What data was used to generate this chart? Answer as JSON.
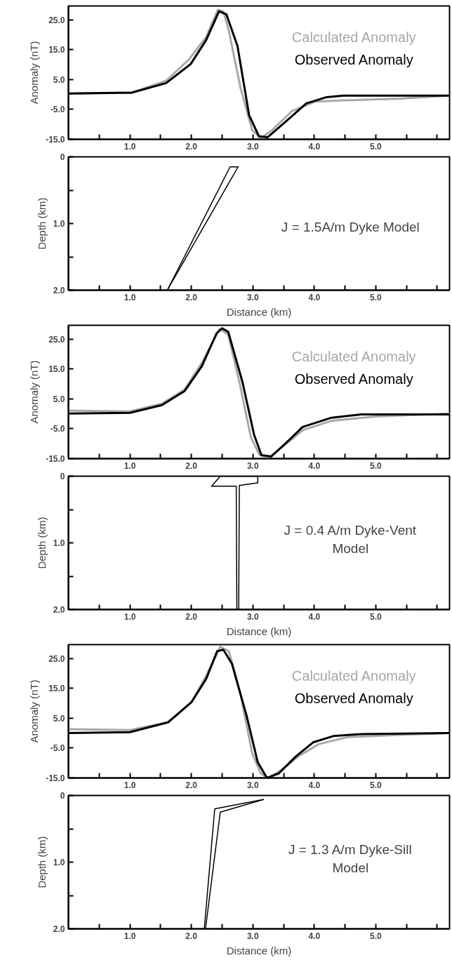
{
  "chart_data": [
    {
      "type": "line",
      "ylabel": "Anomaly (nT)",
      "legend": "top right",
      "xlim": [
        0,
        6.2
      ],
      "ylim": [
        -15,
        29.6
      ],
      "xticks": [
        {
          "value": 0.5,
          "label": null
        },
        {
          "value": 1.0,
          "label": "1.0"
        },
        {
          "value": 1.5,
          "label": null
        },
        {
          "value": 2.0,
          "label": "2.0"
        },
        {
          "value": 2.5,
          "label": null
        },
        {
          "value": 3.0,
          "label": "3.0"
        },
        {
          "value": 3.5,
          "label": null
        },
        {
          "value": 4.0,
          "label": "4.0"
        },
        {
          "value": 4.5,
          "label": null
        },
        {
          "value": 5.0,
          "label": "5.0"
        },
        {
          "value": 5.5,
          "label": null
        },
        {
          "value": 6.0,
          "label": null
        }
      ],
      "yticks": [
        {
          "value": 25,
          "label": "25.0"
        },
        {
          "value": 15,
          "label": "15.0"
        },
        {
          "value": 5,
          "label": "5.0"
        },
        {
          "value": -5,
          "label": "-5.0"
        },
        {
          "value": -15,
          "label": "-15.0"
        }
      ],
      "series": [
        {
          "name": "Calculated Anomaly",
          "color": "#a8a8a8",
          "x": [
            0.02,
            1.03,
            1.59,
            1.96,
            2.24,
            2.43,
            2.52,
            2.61,
            2.8,
            2.99,
            3.13,
            3.31,
            3.64,
            4.01,
            4.47,
            5.4,
            6.19
          ],
          "values": [
            0.3,
            0.6,
            4.6,
            11.7,
            19.2,
            28.3,
            27.8,
            21.3,
            2.1,
            -12,
            -14.6,
            -12,
            -5.5,
            -2.4,
            -2,
            -1.4,
            -0.4
          ]
        },
        {
          "name": "Observed Anomaly",
          "color": "#000000",
          "x": [
            0.02,
            1.03,
            1.59,
            1.99,
            2.24,
            2.45,
            2.57,
            2.75,
            2.94,
            3.1,
            3.24,
            3.54,
            3.87,
            4.2,
            4.47,
            6.19
          ],
          "values": [
            0.3,
            0.6,
            3.8,
            10.2,
            18.2,
            27.8,
            26.8,
            16.2,
            -7,
            -14,
            -14.3,
            -9,
            -3,
            -0.9,
            -0.4,
            -0.4
          ]
        }
      ]
    },
    {
      "type": "line",
      "ylabel": "Depth (km)",
      "xlabel": "Distance (km)",
      "xlim": [
        0,
        6.2
      ],
      "ylim": [
        2.0,
        0
      ],
      "xticks": [
        {
          "value": 0.5,
          "label": null
        },
        {
          "value": 1.0,
          "label": "1.0"
        },
        {
          "value": 1.5,
          "label": null
        },
        {
          "value": 2.0,
          "label": "2.0"
        },
        {
          "value": 2.5,
          "label": null
        },
        {
          "value": 3.0,
          "label": "3.0"
        },
        {
          "value": 3.5,
          "label": null
        },
        {
          "value": 4.0,
          "label": "4.0"
        },
        {
          "value": 4.5,
          "label": null
        },
        {
          "value": 5.0,
          "label": "5.0"
        },
        {
          "value": 5.5,
          "label": null
        },
        {
          "value": 6.0,
          "label": null
        }
      ],
      "yticks": [
        {
          "value": 0,
          "label": "0"
        },
        {
          "value": 0.5,
          "label": null
        },
        {
          "value": 1.0,
          "label": "1.0"
        },
        {
          "value": 1.5,
          "label": null
        },
        {
          "value": 2.0,
          "label": "2.0"
        }
      ],
      "annotations": [
        "J = 1.5A/m Dyke Model"
      ],
      "series": [
        {
          "color": "#000000",
          "x": [
            1.62,
            2.63,
            2.76
          ],
          "values": [
            1.98,
            0.15,
            0.15
          ]
        },
        {
          "color": "#000000",
          "x": [
            1.62,
            2.76
          ],
          "values": [
            1.98,
            0.15
          ]
        }
      ]
    },
    {
      "type": "line",
      "ylabel": "Anomaly (nT)",
      "legend": "top right",
      "xlim": [
        0,
        6.2
      ],
      "ylim": [
        -15,
        29.6
      ],
      "xticks": [
        {
          "value": 0.5,
          "label": null
        },
        {
          "value": 1.0,
          "label": "1.0"
        },
        {
          "value": 1.5,
          "label": null
        },
        {
          "value": 2.0,
          "label": "2.0"
        },
        {
          "value": 2.5,
          "label": null
        },
        {
          "value": 3.0,
          "label": "3.0"
        },
        {
          "value": 3.5,
          "label": null
        },
        {
          "value": 4.0,
          "label": "4.0"
        },
        {
          "value": 4.5,
          "label": null
        },
        {
          "value": 5.0,
          "label": "5.0"
        },
        {
          "value": 5.5,
          "label": null
        },
        {
          "value": 6.0,
          "label": null
        }
      ],
      "yticks": [
        {
          "value": 25,
          "label": "25.0"
        },
        {
          "value": 15,
          "label": "15.0"
        },
        {
          "value": 5,
          "label": "5.0"
        },
        {
          "value": -5,
          "label": "-5.0"
        },
        {
          "value": -15,
          "label": "-15.0"
        }
      ],
      "series": [
        {
          "name": "Calculated Anomaly",
          "color": "#a8a8a8",
          "x": [
            0,
            1,
            1.52,
            1.89,
            2.17,
            2.46,
            2.6,
            2.78,
            2.97,
            3.11,
            3.25,
            3.54,
            3.82,
            4.29,
            5.0,
            6.2
          ],
          "values": [
            1.1,
            0.8,
            3.4,
            8.1,
            17,
            28.4,
            26.4,
            10.7,
            -8,
            -13.8,
            -14.8,
            -10.1,
            -5.4,
            -2.3,
            -0.9,
            0.1
          ]
        },
        {
          "name": "Observed Anomaly",
          "color": "#000000",
          "x": [
            0,
            1,
            1.52,
            1.89,
            2.17,
            2.41,
            2.5,
            2.6,
            2.83,
            3.02,
            3.14,
            3.3,
            3.58,
            3.81,
            4.28,
            4.76,
            6.2
          ],
          "values": [
            0.1,
            0.3,
            2.9,
            7.6,
            15.9,
            26.9,
            28.6,
            27.4,
            10.7,
            -7,
            -13.8,
            -14.3,
            -9,
            -4.4,
            -1.3,
            -0.2,
            -0.2
          ]
        }
      ]
    },
    {
      "type": "line",
      "ylabel": "Depth (km)",
      "xlabel": "Distance (km)",
      "xlim": [
        0,
        6.2
      ],
      "ylim": [
        2.0,
        0
      ],
      "xticks": [
        {
          "value": 0.5,
          "label": null
        },
        {
          "value": 1.0,
          "label": "1.0"
        },
        {
          "value": 1.5,
          "label": null
        },
        {
          "value": 2.0,
          "label": "2.0"
        },
        {
          "value": 2.5,
          "label": null
        },
        {
          "value": 3.0,
          "label": "3.0"
        },
        {
          "value": 3.5,
          "label": null
        },
        {
          "value": 4.0,
          "label": "4.0"
        },
        {
          "value": 4.5,
          "label": null
        },
        {
          "value": 5.0,
          "label": "5.0"
        },
        {
          "value": 5.5,
          "label": null
        },
        {
          "value": 6.0,
          "label": null
        }
      ],
      "yticks": [
        {
          "value": 0,
          "label": "0"
        },
        {
          "value": 0.5,
          "label": null
        },
        {
          "value": 1.0,
          "label": "1.0"
        },
        {
          "value": 1.5,
          "label": null
        },
        {
          "value": 2.0,
          "label": "2.0"
        }
      ],
      "annotations": [
        "J = 0.4 A/m Dyke-Vent\nModel"
      ],
      "series": [
        {
          "color": "#000000",
          "x": [
            2.33,
            2.47,
            3.08,
            3.08
          ],
          "values": [
            0.15,
            0.0,
            0.0,
            0.1
          ]
        },
        {
          "color": "#000000",
          "x": [
            2.33,
            2.73,
            2.74,
            2.77,
            2.78,
            3.08
          ],
          "values": [
            0.15,
            0.15,
            2.0,
            2.0,
            0.14,
            0.1
          ]
        }
      ]
    },
    {
      "type": "line",
      "ylabel": "Anomaly (nT)",
      "legend": "top right",
      "xlim": [
        0,
        6.2
      ],
      "ylim": [
        -15,
        29.6
      ],
      "xticks": [
        {
          "value": 0.5,
          "label": null
        },
        {
          "value": 1.0,
          "label": "1.0"
        },
        {
          "value": 1.5,
          "label": null
        },
        {
          "value": 2.0,
          "label": "2.0"
        },
        {
          "value": 2.5,
          "label": null
        },
        {
          "value": 3.0,
          "label": "3.0"
        },
        {
          "value": 3.5,
          "label": null
        },
        {
          "value": 4.0,
          "label": "4.0"
        },
        {
          "value": 4.5,
          "label": null
        },
        {
          "value": 5.0,
          "label": "5.0"
        },
        {
          "value": 5.5,
          "label": null
        },
        {
          "value": 6.0,
          "label": null
        }
      ],
      "yticks": [
        {
          "value": 25,
          "label": "25.0"
        },
        {
          "value": 15,
          "label": "15.0"
        },
        {
          "value": 5,
          "label": "5.0"
        },
        {
          "value": -5,
          "label": "-5.0"
        },
        {
          "value": -15,
          "label": "-15.0"
        }
      ],
      "series": [
        {
          "name": "Calculated Anomaly",
          "color": "#a8a8a8",
          "x": [
            0,
            1,
            1.62,
            2,
            2.24,
            2.47,
            2.61,
            2.8,
            2.99,
            3.13,
            3.25,
            3.46,
            3.74,
            4.07,
            4.55,
            5.49,
            6.2
          ],
          "values": [
            1.3,
            1,
            3.6,
            10.3,
            19.1,
            28.9,
            27.4,
            12.9,
            -6.8,
            -13.5,
            -15,
            -12.4,
            -7.8,
            -3.7,
            -1.3,
            -0.5,
            0
          ]
        },
        {
          "name": "Observed Anomaly",
          "color": "#000000",
          "x": [
            0,
            1,
            1.62,
            2,
            2.24,
            2.42,
            2.52,
            2.66,
            2.9,
            3.08,
            3.23,
            3.42,
            3.7,
            3.98,
            4.31,
            4.78,
            6.2
          ],
          "values": [
            0,
            0.3,
            3.6,
            10.3,
            18.1,
            27.4,
            27.9,
            23.2,
            5.7,
            -9.8,
            -15,
            -13.5,
            -7.8,
            -3.1,
            -1,
            -0.3,
            0
          ]
        }
      ]
    },
    {
      "type": "line",
      "ylabel": "Depth (km)",
      "xlabel": "Distance (km)",
      "xlim": [
        0,
        6.2
      ],
      "ylim": [
        2.0,
        0
      ],
      "xticks": [
        {
          "value": 0.5,
          "label": null
        },
        {
          "value": 1.0,
          "label": "1.0"
        },
        {
          "value": 1.5,
          "label": null
        },
        {
          "value": 2.0,
          "label": "2.0"
        },
        {
          "value": 2.5,
          "label": null
        },
        {
          "value": 3.0,
          "label": "3.0"
        },
        {
          "value": 3.5,
          "label": null
        },
        {
          "value": 4.0,
          "label": "4.0"
        },
        {
          "value": 4.5,
          "label": null
        },
        {
          "value": 5.0,
          "label": "5.0"
        },
        {
          "value": 5.5,
          "label": null
        },
        {
          "value": 6.0,
          "label": null
        }
      ],
      "yticks": [
        {
          "value": 0,
          "label": "0"
        },
        {
          "value": 0.5,
          "label": null
        },
        {
          "value": 1.0,
          "label": "1.0"
        },
        {
          "value": 1.5,
          "label": null
        },
        {
          "value": 2.0,
          "label": "2.0"
        }
      ],
      "annotations": [
        "J = 1.3 A/m Dyke-Sill\nModel"
      ],
      "series": [
        {
          "color": "#000000",
          "x": [
            2.21,
            2.38,
            3.17
          ],
          "values": [
            2.0,
            0.2,
            0.06
          ]
        },
        {
          "color": "#000000",
          "x": [
            2.23,
            2.47,
            3.17
          ],
          "values": [
            2.0,
            0.25,
            0.06
          ]
        }
      ]
    }
  ]
}
